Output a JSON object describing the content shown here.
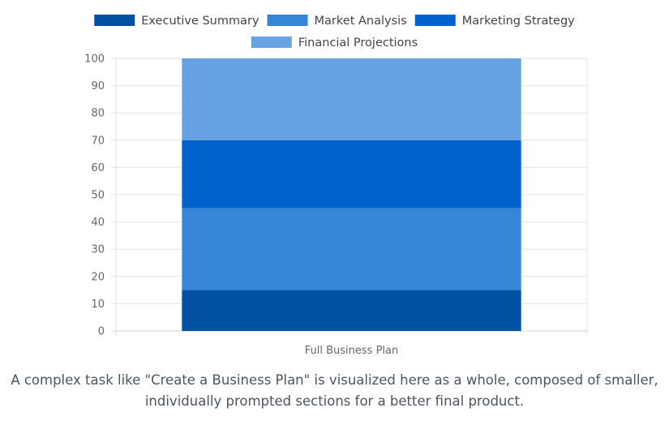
{
  "chart_data": {
    "type": "bar",
    "stacked": true,
    "categories": [
      "Full Business Plan"
    ],
    "series": [
      {
        "name": "Executive Summary",
        "values": [
          15
        ],
        "color": "#0051a2"
      },
      {
        "name": "Market Analysis",
        "values": [
          30
        ],
        "color": "#3686d8"
      },
      {
        "name": "Marketing Strategy",
        "values": [
          25
        ],
        "color": "#0063cc"
      },
      {
        "name": "Financial Projections",
        "values": [
          30
        ],
        "color": "#67a3e2"
      }
    ],
    "ylim": [
      0,
      100
    ],
    "yticks": [
      0,
      10,
      20,
      30,
      40,
      50,
      60,
      70,
      80,
      90,
      100
    ],
    "grid": true,
    "legend": "top",
    "title": "",
    "xlabel": "",
    "ylabel": ""
  },
  "caption": {
    "line1": "A complex task like \"Create a Business Plan\" is visualized here as a whole, composed of smaller,",
    "line2": "individually prompted sections for a better final product."
  }
}
